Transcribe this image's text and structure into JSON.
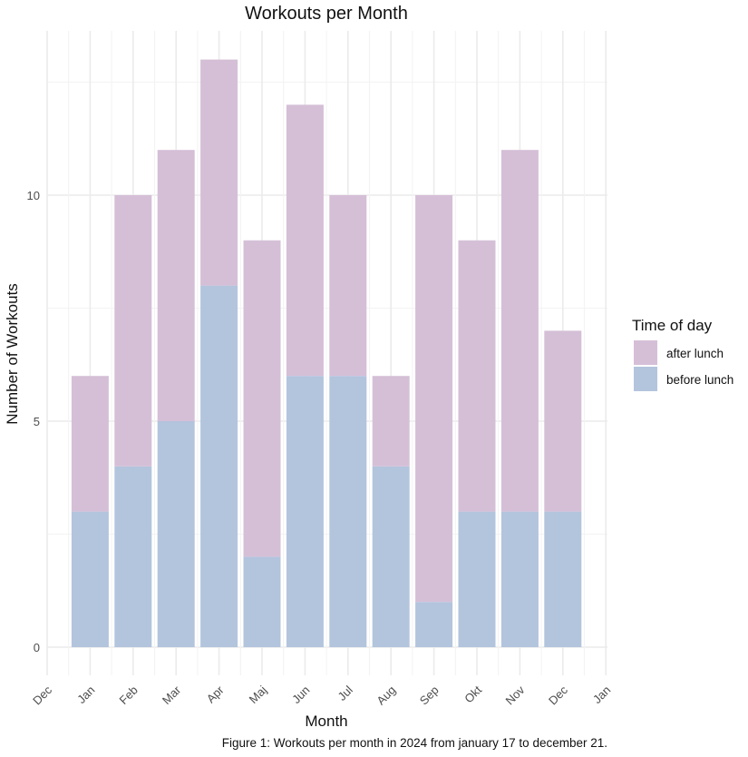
{
  "chart_data": {
    "type": "bar",
    "stacked": true,
    "title": "Workouts per Month",
    "xlabel": "Month",
    "ylabel": "Number of Workouts",
    "caption": "Figure 1: Workouts per month in 2024 from january 17 to december 21.",
    "x_axis_ticks": [
      "Dec",
      "Jan",
      "Feb",
      "Mar",
      "Apr",
      "Maj",
      "Jun",
      "Jul",
      "Aug",
      "Sep",
      "Okt",
      "Nov",
      "Dec",
      "Jan"
    ],
    "categories": [
      "Jan",
      "Feb",
      "Mar",
      "Apr",
      "Maj",
      "Jun",
      "Jul",
      "Aug",
      "Sep",
      "Okt",
      "Nov",
      "Dec"
    ],
    "y_ticks": [
      0,
      5,
      10
    ],
    "ylim": [
      -0.6,
      13.6
    ],
    "grid": true,
    "legend": {
      "title": "Time of day",
      "placement": "right"
    },
    "series": [
      {
        "name": "before lunch",
        "color": "#b3c4dd",
        "values": [
          3,
          4,
          5,
          8,
          2,
          6,
          6,
          4,
          1,
          3,
          3,
          3
        ]
      },
      {
        "name": "after lunch",
        "color": "#d5bfd7",
        "values": [
          3,
          6,
          6,
          5,
          7,
          6,
          4,
          2,
          9,
          6,
          8,
          4
        ]
      }
    ],
    "legend_order": [
      "after lunch",
      "before lunch"
    ]
  }
}
